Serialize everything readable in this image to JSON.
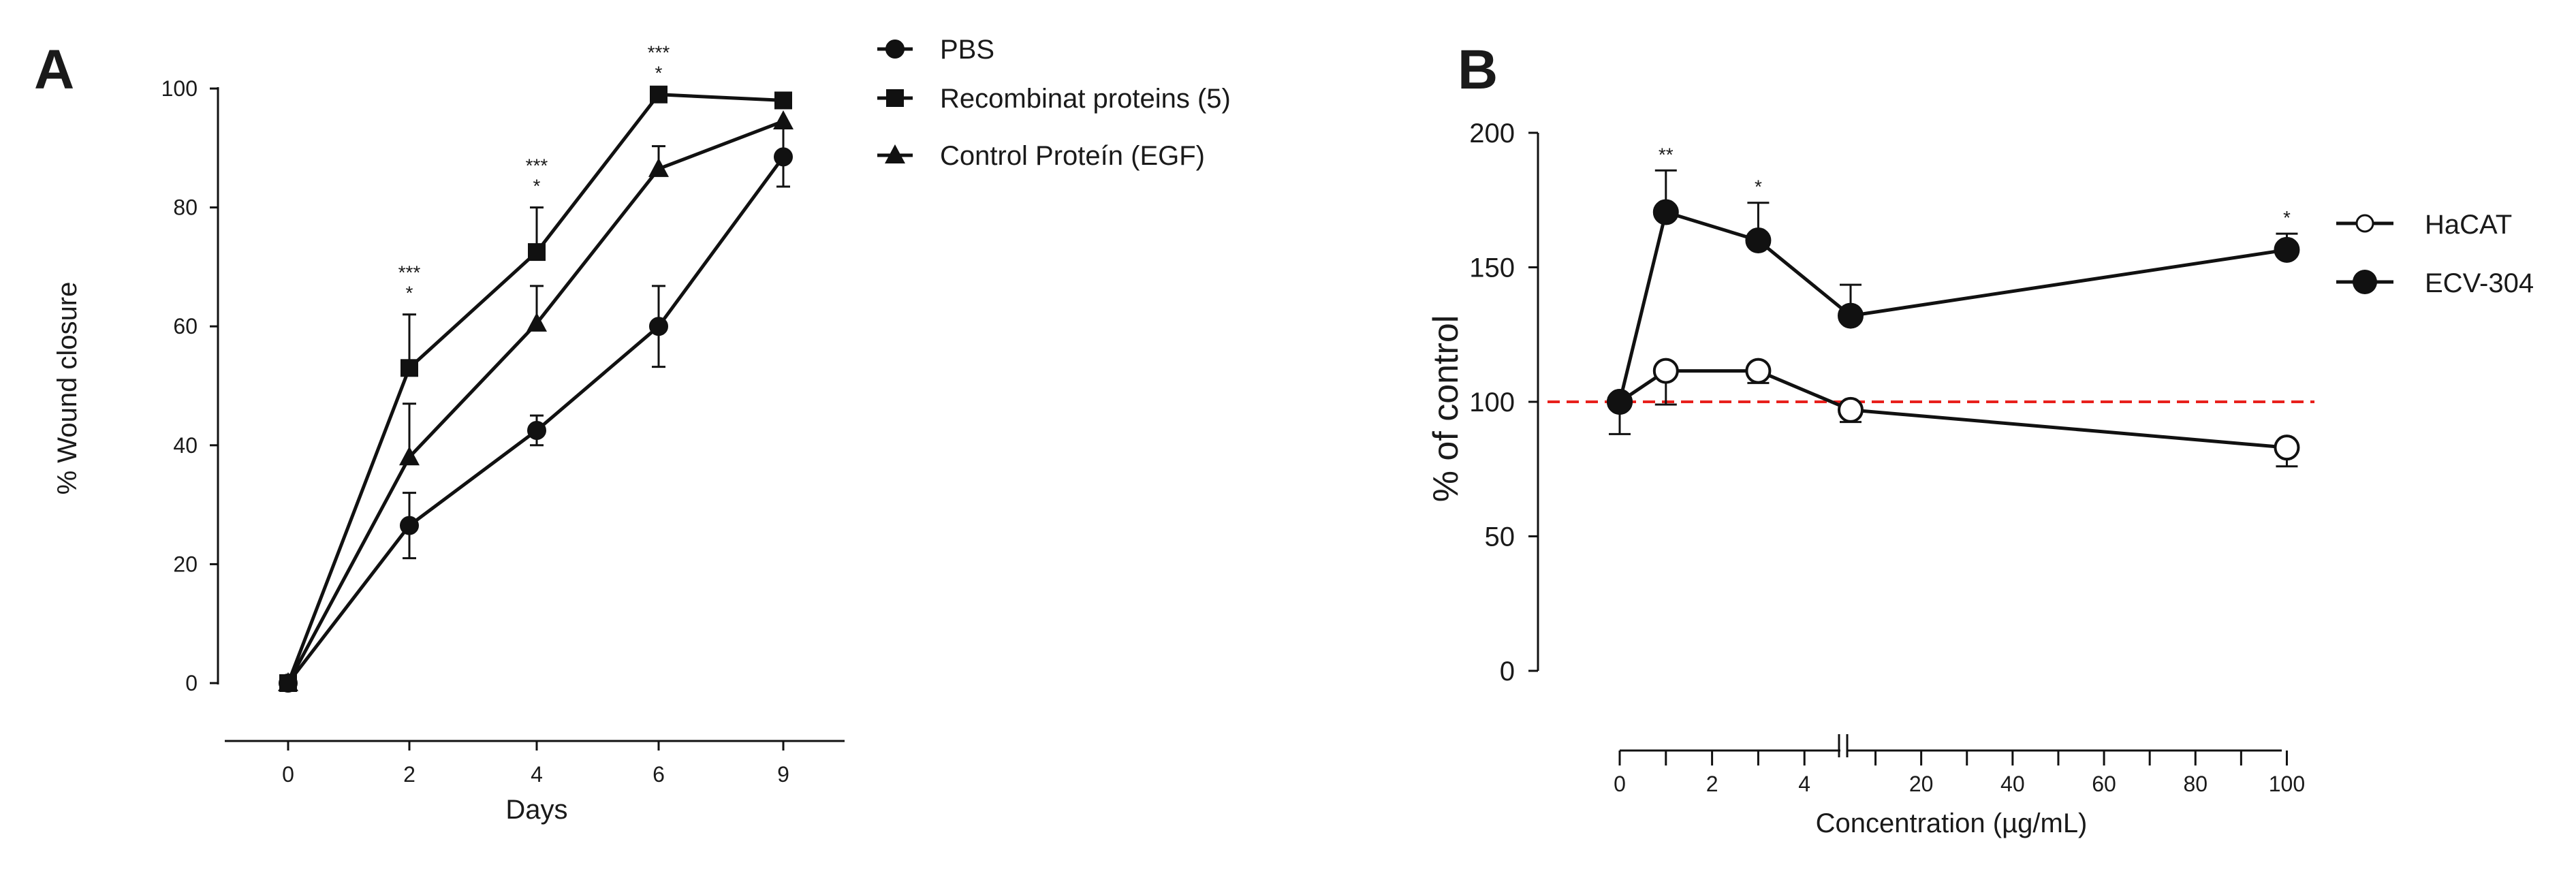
{
  "chart_data": [
    {
      "panel": "A",
      "type": "line",
      "xlabel": "Days",
      "ylabel": "% Wound closure",
      "x_ticks": [
        "0",
        "2",
        "4",
        "6",
        "9"
      ],
      "y_ticks": [
        "0",
        "20",
        "40",
        "60",
        "80",
        "100"
      ],
      "ylim": [
        0,
        100
      ],
      "categories": [
        "0",
        "2",
        "4",
        "6",
        "9"
      ],
      "series": [
        {
          "name": "PBS",
          "marker": "circle",
          "values": [
            0,
            26.5,
            42.5,
            60,
            88.5
          ],
          "err": [
            0,
            5.5,
            2.5,
            6.8,
            5
          ]
        },
        {
          "name": "Recombinat proteins (5)",
          "marker": "square",
          "values": [
            0,
            53,
            72.5,
            99,
            98
          ],
          "err": [
            0,
            9,
            7.5,
            0,
            0
          ]
        },
        {
          "name": "Control Proteín (EGF)",
          "marker": "triangle",
          "values": [
            0,
            38,
            60.5,
            86.5,
            94.5
          ],
          "err": [
            0,
            9,
            6.3,
            3.8,
            0
          ]
        }
      ],
      "annotations": [
        {
          "category": "2",
          "lines": [
            "***",
            "*"
          ]
        },
        {
          "category": "4",
          "lines": [
            "***",
            "*"
          ]
        },
        {
          "category": "6",
          "lines": [
            "***",
            "*"
          ]
        }
      ]
    },
    {
      "panel": "B",
      "type": "line",
      "xlabel": "Concentration (µg/mL)",
      "ylabel": "% of control",
      "x_ticks_left": [
        "0",
        "2",
        "4"
      ],
      "x_ticks_right": [
        "20",
        "40",
        "60",
        "80",
        "100"
      ],
      "y_ticks": [
        "0",
        "50",
        "100",
        "150",
        "200"
      ],
      "ylim": [
        0,
        200
      ],
      "reference_line": {
        "y": 100,
        "color": "#e8201c"
      },
      "x": [
        0,
        1,
        3,
        5,
        100
      ],
      "series": [
        {
          "name": "HaCAT",
          "marker": "open-circle",
          "values": [
            100,
            111.5,
            111.5,
            97,
            83
          ],
          "err": [
            0,
            12.5,
            4.5,
            4.5,
            7
          ]
        },
        {
          "name": "ECV-304",
          "marker": "filled-circle",
          "values": [
            100,
            170.5,
            160,
            132,
            156.5
          ],
          "err": [
            12,
            15.5,
            14,
            11.5,
            6
          ]
        }
      ],
      "annotations": [
        {
          "x": 1,
          "text": "**"
        },
        {
          "x": 3,
          "text": "*"
        },
        {
          "x": 100,
          "text": "*"
        }
      ]
    }
  ]
}
